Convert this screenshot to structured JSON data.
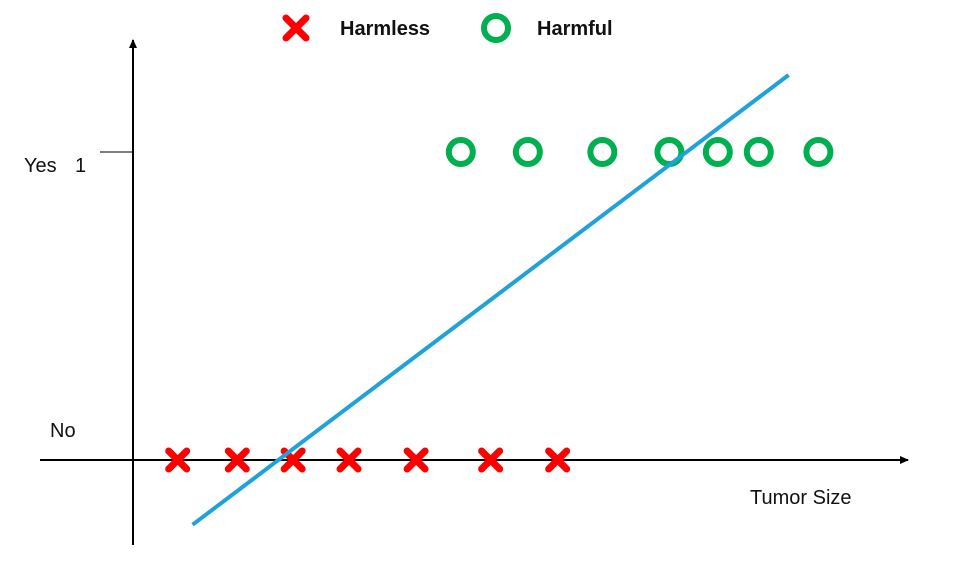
{
  "legend": {
    "harmless_label": "Harmless",
    "harmful_label": "Harmful"
  },
  "chart_data": {
    "type": "scatter",
    "title": "",
    "xlabel": "Tumor Size",
    "ylabel": "",
    "y_tick_labels": {
      "yes": "Yes",
      "one": "1",
      "no": "No"
    },
    "x_range": [
      0,
      100
    ],
    "y_range": [
      -0.25,
      1.4
    ],
    "grid": false,
    "legend_position": "top-center",
    "series": [
      {
        "name": "Harmless",
        "marker": "cross",
        "color": "#ff0000",
        "points": [
          {
            "x": 6,
            "y": 0
          },
          {
            "x": 14,
            "y": 0
          },
          {
            "x": 21.5,
            "y": 0
          },
          {
            "x": 29,
            "y": 0
          },
          {
            "x": 38,
            "y": 0
          },
          {
            "x": 48,
            "y": 0
          },
          {
            "x": 57,
            "y": 0
          }
        ]
      },
      {
        "name": "Harmful",
        "marker": "circle",
        "color": "#00b050",
        "points": [
          {
            "x": 44,
            "y": 1
          },
          {
            "x": 53,
            "y": 1
          },
          {
            "x": 63,
            "y": 1
          },
          {
            "x": 72,
            "y": 1
          },
          {
            "x": 78.5,
            "y": 1
          },
          {
            "x": 84,
            "y": 1
          },
          {
            "x": 92,
            "y": 1
          }
        ]
      }
    ],
    "fit_line": {
      "color": "#1fa2dc",
      "from": {
        "x": 8,
        "y": -0.21
      },
      "to": {
        "x": 88,
        "y": 1.25
      }
    }
  }
}
